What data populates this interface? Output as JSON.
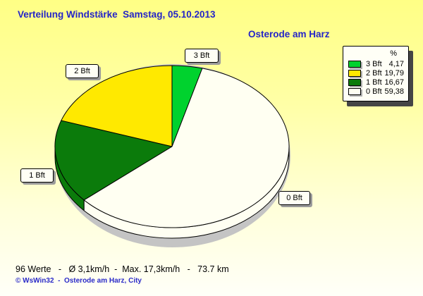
{
  "title": "Verteilung Windstärke  Samstag, 05.10.2013",
  "station": "Osterode am Harz",
  "legend": {
    "header": "%"
  },
  "footer": {
    "stats": "96 Werte   -   Ø 3,1km/h  -  Max. 17,3km/h   -   73.7 km",
    "copyright": "© WsWin32  -  Osterode am Harz, City"
  },
  "chart_data": {
    "type": "pie",
    "style": "3d-pie-with-depth-and-shadow",
    "title": "Verteilung Windstärke  Samstag, 05.10.2013",
    "subtitle": "Osterode am Harz",
    "unit": "%",
    "series": [
      {
        "name": "3 Bft",
        "value": 4.17,
        "display": "4,17",
        "color": "#00d22e"
      },
      {
        "name": "2 Bft",
        "value": 19.79,
        "display": "19,79",
        "color": "#ffe900"
      },
      {
        "name": "1 Bft",
        "value": 16.67,
        "display": "16,67",
        "color": "#0b7b0b"
      },
      {
        "name": "0 Bft",
        "value": 59.38,
        "display": "59,38",
        "color": "#fffff2"
      }
    ],
    "layout": {
      "start_angle_deg": 75,
      "direction": "counterclockwise",
      "legend_position": "top-right",
      "slice_outline_color": "#000000",
      "shadow_color": "#c4c4c4"
    }
  }
}
